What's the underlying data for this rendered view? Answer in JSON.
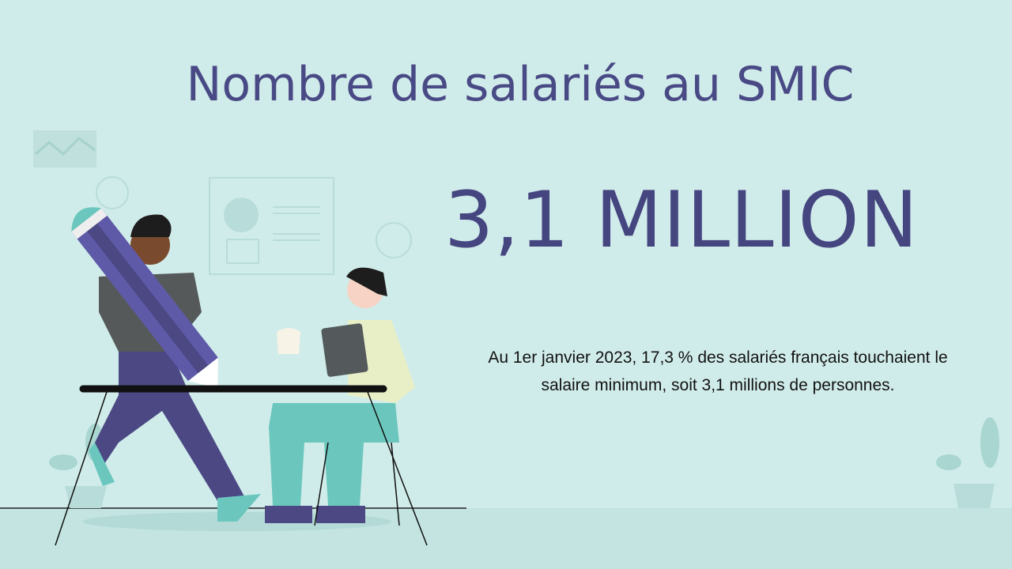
{
  "slide": {
    "title": "Nombre de salariés au SMIC",
    "headline": "3,1 MILLION",
    "body": "Au 1er janvier 2023, 17,3 % des salariés français touchaient le salaire minimum, soit 3,1 millions de personnes."
  }
}
